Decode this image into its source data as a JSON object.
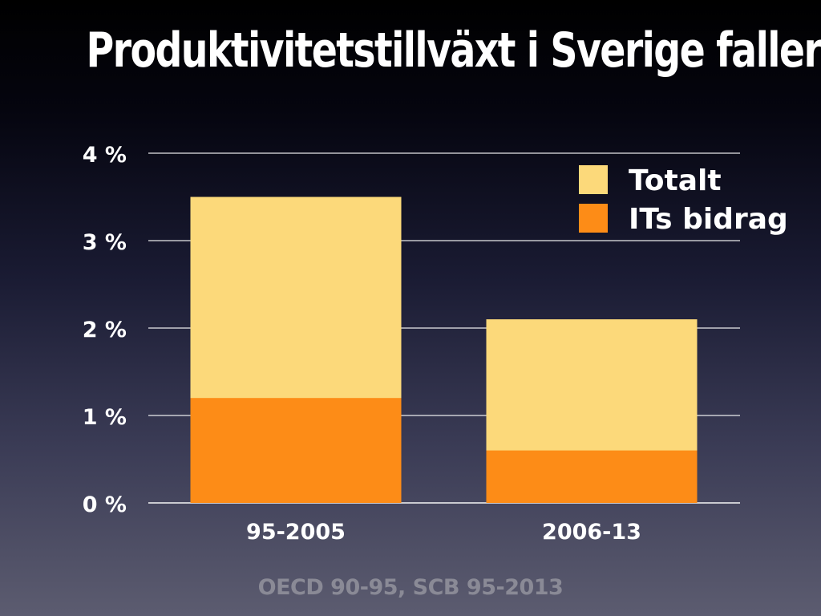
{
  "title": "Produktivitetstillväxt i Sverige faller",
  "source": "OECD 90-95, SCB 95-2013",
  "colors": {
    "totalt": "#fcd97a",
    "its_bidrag": "#fd8c17",
    "text": "#ffffff",
    "gridline": "#ffffff",
    "source_text": "#8a8a96"
  },
  "chart_data": {
    "type": "bar",
    "categories": [
      "95-2005",
      "2006-13"
    ],
    "series": [
      {
        "name": "Totalt",
        "values": [
          3.5,
          2.1
        ]
      },
      {
        "name": "ITs bidrag",
        "values": [
          1.2,
          0.6
        ]
      }
    ],
    "yticks": [
      "0 %",
      "1 %",
      "2 %",
      "3 %",
      "4 %"
    ],
    "ylim": [
      0,
      4
    ],
    "grid": true,
    "legend_position": "top-right",
    "overlapping_bars": true
  }
}
